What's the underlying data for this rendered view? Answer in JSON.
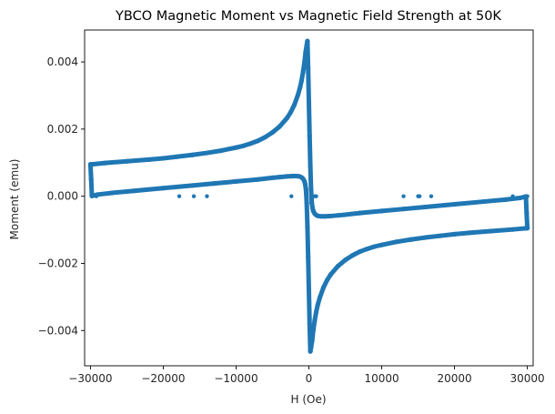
{
  "chart_data": {
    "type": "scatter",
    "title": "YBCO Magnetic Moment vs Magnetic Field Strength at 50K",
    "xlabel": "H (Oe)",
    "ylabel": "Moment (emu)",
    "xlim": [
      -30800,
      30800
    ],
    "ylim": [
      -0.00505,
      0.00495
    ],
    "xticks": [
      -30000,
      -20000,
      -10000,
      0,
      10000,
      20000,
      30000
    ],
    "xtick_labels": [
      "−30000",
      "−20000",
      "−10000",
      "0",
      "10000",
      "20000",
      "30000"
    ],
    "yticks": [
      -0.004,
      -0.002,
      0.0,
      0.002,
      0.004
    ],
    "ytick_labels": [
      "−0.004",
      "−0.002",
      "0.000",
      "0.002",
      "0.004"
    ],
    "grid": false,
    "marker_color": "#1f77b4",
    "branches": [
      {
        "x": [
          -29800,
          -28000,
          -25000,
          -22000,
          -20000,
          -18000,
          -16000,
          -14000,
          -12000,
          -10000,
          -9000,
          -8000,
          -7000,
          -6000,
          -5000,
          -4000,
          -3000,
          -2500,
          -2000,
          -1500,
          -1200,
          -1000,
          -800,
          -600,
          -450,
          -300,
          -200
        ],
        "y": [
          0.00095,
          0.00099,
          0.00104,
          0.00109,
          0.00113,
          0.00118,
          0.00123,
          0.00129,
          0.00136,
          0.00145,
          0.0015,
          0.00157,
          0.00165,
          0.00176,
          0.0019,
          0.00208,
          0.00233,
          0.0025,
          0.00272,
          0.00302,
          0.00325,
          0.00345,
          0.0037,
          0.004,
          0.0043,
          0.0045,
          0.00462
        ]
      },
      {
        "x": [
          -200,
          -100,
          0,
          100,
          200,
          300,
          400,
          500,
          600,
          800,
          1000,
          1300,
          1700,
          2200,
          3000,
          4000,
          5000,
          7000,
          10000,
          13000,
          16000,
          20000,
          24000,
          27000,
          29000,
          29800
        ],
        "y": [
          0.00462,
          0.0038,
          0.0028,
          0.0018,
          0.0009,
          0.0002,
          -0.0002,
          -0.00035,
          -0.00044,
          -0.00052,
          -0.00056,
          -0.00059,
          -0.0006,
          -0.0006,
          -0.00059,
          -0.00057,
          -0.00055,
          -0.0005,
          -0.00044,
          -0.00038,
          -0.00032,
          -0.00024,
          -0.00016,
          -0.0001,
          -5e-05,
          -1e-05
        ]
      },
      {
        "x": [
          29800,
          29900,
          30000
        ],
        "y": [
          -1e-05,
          -0.0005,
          -0.00095
        ]
      },
      {
        "x": [
          30000,
          28000,
          25000,
          22000,
          20000,
          18000,
          16000,
          14000,
          12000,
          10000,
          9000,
          8000,
          7000,
          6000,
          5000,
          4000,
          3000,
          2500,
          2000,
          1500,
          1200,
          1000,
          800,
          600,
          450,
          300,
          200
        ],
        "y": [
          -0.00095,
          -0.00099,
          -0.00104,
          -0.00109,
          -0.00113,
          -0.00118,
          -0.00123,
          -0.00129,
          -0.00136,
          -0.00145,
          -0.0015,
          -0.00157,
          -0.00165,
          -0.00176,
          -0.0019,
          -0.00208,
          -0.00233,
          -0.0025,
          -0.00272,
          -0.00302,
          -0.00325,
          -0.00345,
          -0.0037,
          -0.004,
          -0.0043,
          -0.0045,
          -0.00462
        ]
      },
      {
        "x": [
          200,
          100,
          0,
          -100,
          -200,
          -300,
          -400,
          -500,
          -600,
          -800,
          -1000,
          -1300,
          -1700,
          -2200,
          -3000,
          -4000,
          -5000,
          -7000,
          -10000,
          -13000,
          -16000,
          -20000,
          -24000,
          -27000,
          -29000,
          -29800
        ],
        "y": [
          -0.00462,
          -0.0038,
          -0.0028,
          -0.0018,
          -0.0009,
          -0.0002,
          0.0002,
          0.00035,
          0.00044,
          0.00052,
          0.00056,
          0.00059,
          0.0006,
          0.0006,
          0.00059,
          0.00057,
          0.00055,
          0.0005,
          0.00044,
          0.00038,
          0.00032,
          0.00024,
          0.00016,
          0.0001,
          5e-05,
          1e-05
        ]
      },
      {
        "x": [
          -29800,
          -29900,
          -30000
        ],
        "y": [
          1e-05,
          0.0005,
          0.00095
        ]
      }
    ],
    "outliers": {
      "x": [
        -29200,
        -17800,
        -15800,
        -14000,
        -2400,
        800,
        1000,
        13000,
        15000,
        15200,
        16800,
        28000,
        30000
      ],
      "y": [
        0,
        0,
        0,
        0,
        0,
        0,
        0,
        0,
        0,
        0,
        0,
        0,
        0
      ]
    }
  }
}
